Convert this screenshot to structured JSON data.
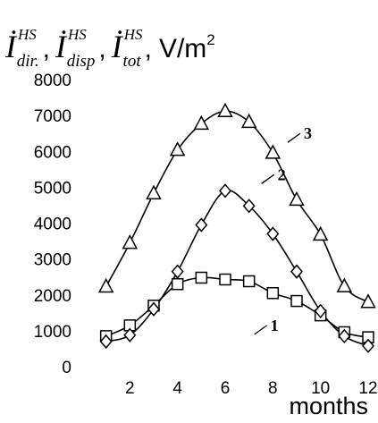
{
  "title": {
    "base": "İ",
    "items": [
      {
        "sup": "HS",
        "sub": "dir."
      },
      {
        "sup": "HS",
        "sub": "disp"
      },
      {
        "sup": "HS",
        "sub": "tot"
      }
    ],
    "separator": ",",
    "unit": "V/m",
    "unit_exp": "2"
  },
  "chart_data": {
    "type": "line",
    "xlabel": "months",
    "ylabel": "",
    "xlim": [
      0.6,
      12.3
    ],
    "ylim": [
      0,
      8000
    ],
    "x_ticks": [
      2,
      4,
      6,
      8,
      10,
      12
    ],
    "y_ticks": [
      0,
      1000,
      2000,
      3000,
      4000,
      5000,
      6000,
      7000,
      8000
    ],
    "grid": false,
    "x": [
      1,
      2,
      3,
      4,
      5,
      6,
      7,
      8,
      9,
      10,
      11,
      12
    ],
    "series": [
      {
        "name": "1",
        "marker": "square",
        "values": [
          850,
          1150,
          1700,
          2300,
          2480,
          2430,
          2380,
          2050,
          1830,
          1430,
          960,
          820
        ],
        "label_at": {
          "x": 7.6,
          "y": 1150
        }
      },
      {
        "name": "2",
        "marker": "diamond",
        "values": [
          700,
          880,
          1600,
          2650,
          3950,
          4900,
          4480,
          3700,
          2650,
          1550,
          850,
          580
        ],
        "label_at": {
          "x": 7.9,
          "y": 5350
        }
      },
      {
        "name": "3",
        "marker": "triangle",
        "values": [
          2230,
          3450,
          4830,
          6040,
          6770,
          7120,
          6820,
          5960,
          4650,
          3680,
          2240,
          1800
        ],
        "label_at": {
          "x": 9.0,
          "y": 6500
        }
      }
    ]
  }
}
